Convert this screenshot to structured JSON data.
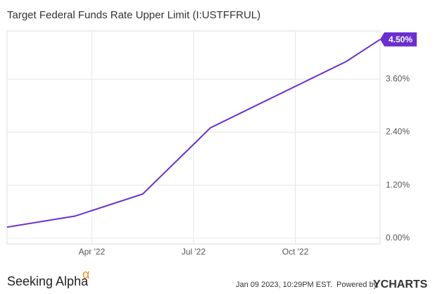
{
  "chart_data": {
    "type": "line",
    "title": "Target Federal Funds Rate Upper Limit (I:USTFFRUL)",
    "x": [
      "2022-01",
      "2022-03",
      "2022-05",
      "2022-06",
      "2022-07",
      "2022-09",
      "2022-11",
      "2022-12"
    ],
    "series": [
      {
        "name": "Target Federal Funds Rate Upper Limit",
        "color": "#6a2fd1",
        "values": [
          0.25,
          0.5,
          1.0,
          1.75,
          2.5,
          3.25,
          4.0,
          4.5
        ],
        "value_labels": [
          null,
          null,
          null,
          null,
          null,
          null,
          null,
          "4.50%"
        ]
      }
    ],
    "xlim": [
      "2022-01",
      "2022-12"
    ],
    "xticks": [
      {
        "value": "2022-04",
        "label": "Apr '22"
      },
      {
        "value": "2022-07",
        "label": "Jul '22"
      },
      {
        "value": "2022-10",
        "label": "Oct '22"
      }
    ],
    "ylim": [
      -0.13,
      4.69
    ],
    "yticks": [
      {
        "value": 0,
        "label": "0.00%"
      },
      {
        "value": 1.2,
        "label": "1.20%"
      },
      {
        "value": 2.4,
        "label": "2.40%"
      },
      {
        "value": 3.6,
        "label": "3.60%"
      }
    ],
    "grid": true
  },
  "footer": {
    "brand": "Seeking Alpha",
    "brand_mark": "α",
    "timestamp": "Jan 09 2023, 10:29PM EST.",
    "powered_by": "Powered by",
    "provider": "YCHARTS"
  }
}
